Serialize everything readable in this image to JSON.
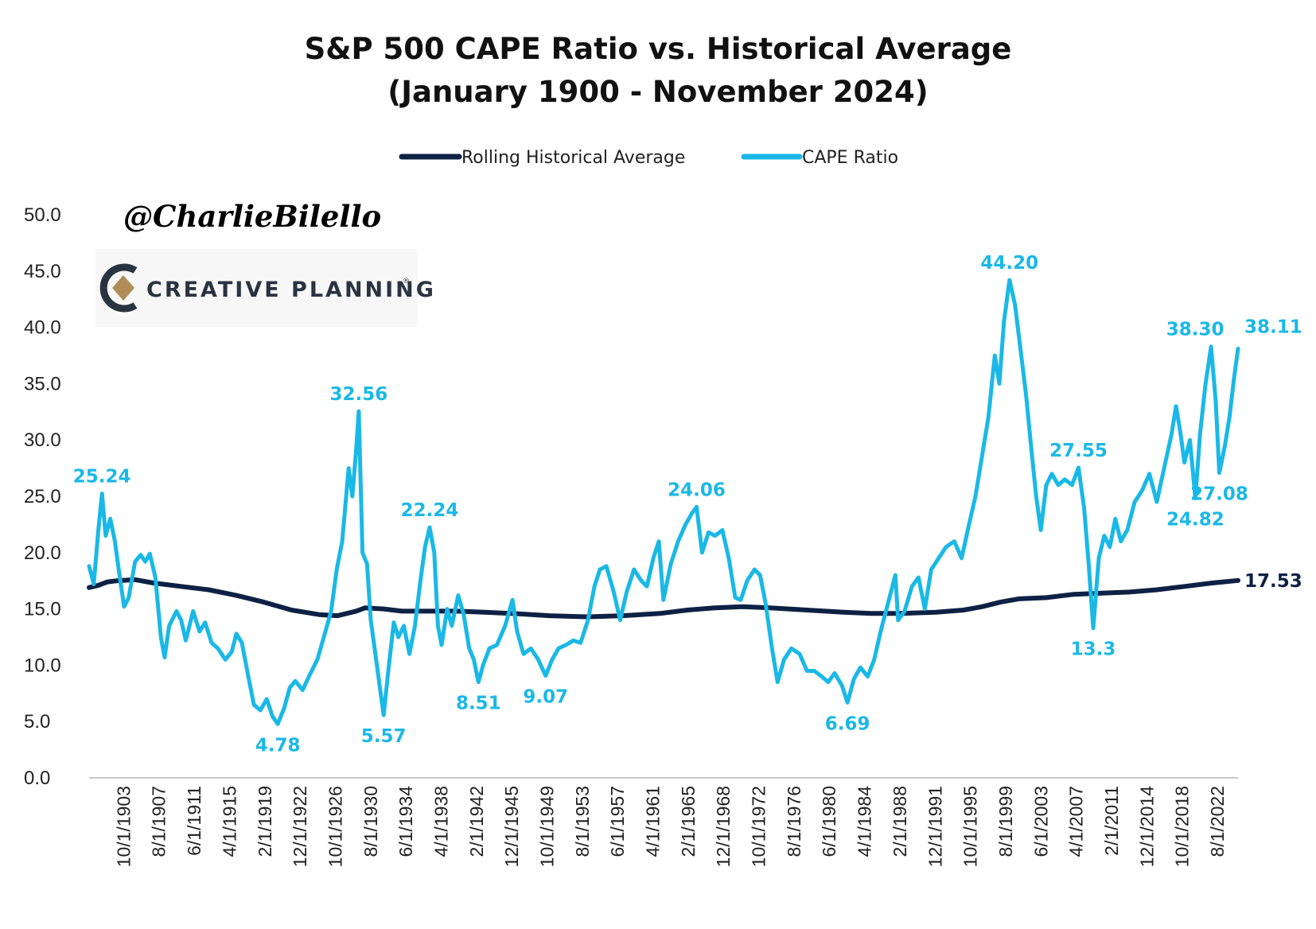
{
  "colors": {
    "cape": "#1ab8e6",
    "average": "#0d2144",
    "axis": "#c8c8c8",
    "logo_dark": "#2a3340",
    "logo_gold": "#b08d57"
  },
  "watermark": {
    "handle": "@CharlieBilello",
    "logo_text": "CREATIVE PLANNING",
    "logo_icon": "creative-planning-logo-icon"
  },
  "chart_data": {
    "type": "line",
    "title": "S&P 500 CAPE Ratio vs. Historical Average",
    "subtitle": "(January 1900 - November 2024)",
    "legend": {
      "placement": "top-center"
    },
    "xlabel": "",
    "ylabel": "",
    "grid": false,
    "x_range": [
      1900,
      2024.83
    ],
    "ylim": [
      0,
      50
    ],
    "y_ticks": [
      "0.0",
      "5.0",
      "10.0",
      "15.0",
      "20.0",
      "25.0",
      "30.0",
      "35.0",
      "40.0",
      "45.0",
      "50.0"
    ],
    "x_ticks": [
      "10/1/1903",
      "8/1/1907",
      "6/1/1911",
      "4/1/1915",
      "2/1/1919",
      "12/1/1922",
      "10/1/1926",
      "8/1/1930",
      "6/1/1934",
      "4/1/1938",
      "2/1/1942",
      "12/1/1945",
      "10/1/1949",
      "8/1/1953",
      "6/1/1957",
      "4/1/1961",
      "2/1/1965",
      "12/1/1968",
      "10/1/1972",
      "8/1/1976",
      "6/1/1980",
      "4/1/1984",
      "2/1/1988",
      "12/1/1991",
      "10/1/1995",
      "8/1/1999",
      "6/1/2003",
      "4/1/2007",
      "2/1/2011",
      "12/1/2014",
      "10/1/2018",
      "8/1/2022"
    ],
    "series": [
      {
        "name": "Rolling Historical Average",
        "points": [
          [
            1900,
            16.9
          ],
          [
            1901,
            17.1
          ],
          [
            1902,
            17.4
          ],
          [
            1903,
            17.5
          ],
          [
            1905,
            17.6
          ],
          [
            1907,
            17.3
          ],
          [
            1910,
            17.0
          ],
          [
            1913,
            16.7
          ],
          [
            1916,
            16.2
          ],
          [
            1919,
            15.6
          ],
          [
            1922,
            14.9
          ],
          [
            1925,
            14.5
          ],
          [
            1927,
            14.4
          ],
          [
            1929,
            14.8
          ],
          [
            1930,
            15.1
          ],
          [
            1932,
            15.0
          ],
          [
            1934,
            14.8
          ],
          [
            1937,
            14.8
          ],
          [
            1940,
            14.8
          ],
          [
            1943,
            14.7
          ],
          [
            1946,
            14.6
          ],
          [
            1950,
            14.4
          ],
          [
            1954,
            14.3
          ],
          [
            1958,
            14.4
          ],
          [
            1962,
            14.6
          ],
          [
            1965,
            14.9
          ],
          [
            1968,
            15.1
          ],
          [
            1971,
            15.2
          ],
          [
            1974,
            15.1
          ],
          [
            1978,
            14.9
          ],
          [
            1982,
            14.7
          ],
          [
            1985,
            14.6
          ],
          [
            1988,
            14.6
          ],
          [
            1992,
            14.7
          ],
          [
            1995,
            14.9
          ],
          [
            1997,
            15.2
          ],
          [
            1999,
            15.6
          ],
          [
            2001,
            15.9
          ],
          [
            2004,
            16.0
          ],
          [
            2007,
            16.3
          ],
          [
            2010,
            16.4
          ],
          [
            2013,
            16.5
          ],
          [
            2016,
            16.7
          ],
          [
            2019,
            17.0
          ],
          [
            2022,
            17.3
          ],
          [
            2024.83,
            17.53
          ]
        ]
      },
      {
        "name": "CAPE Ratio",
        "points": [
          [
            1900,
            18.8
          ],
          [
            1900.5,
            17.2
          ],
          [
            1901,
            22.0
          ],
          [
            1901.4,
            25.24
          ],
          [
            1901.8,
            21.5
          ],
          [
            1902.3,
            23.0
          ],
          [
            1902.8,
            21.0
          ],
          [
            1903.3,
            18.0
          ],
          [
            1903.8,
            15.2
          ],
          [
            1904.3,
            16.0
          ],
          [
            1905,
            19.2
          ],
          [
            1905.6,
            19.8
          ],
          [
            1906.1,
            19.2
          ],
          [
            1906.6,
            19.9
          ],
          [
            1907.2,
            17.8
          ],
          [
            1907.8,
            12.5
          ],
          [
            1908.2,
            10.7
          ],
          [
            1908.7,
            13.5
          ],
          [
            1909.5,
            14.8
          ],
          [
            1910,
            14.0
          ],
          [
            1910.5,
            12.2
          ],
          [
            1911.3,
            14.8
          ],
          [
            1912,
            13.0
          ],
          [
            1912.6,
            13.8
          ],
          [
            1913.3,
            12.0
          ],
          [
            1914,
            11.5
          ],
          [
            1914.8,
            10.5
          ],
          [
            1915.5,
            11.2
          ],
          [
            1916,
            12.8
          ],
          [
            1916.6,
            12.0
          ],
          [
            1917.3,
            9.0
          ],
          [
            1917.9,
            6.5
          ],
          [
            1918.6,
            6.0
          ],
          [
            1919.3,
            7.0
          ],
          [
            1919.9,
            5.5
          ],
          [
            1920.5,
            4.78
          ],
          [
            1921.2,
            6.2
          ],
          [
            1921.8,
            8.0
          ],
          [
            1922.4,
            8.6
          ],
          [
            1923.2,
            7.8
          ],
          [
            1924,
            9.2
          ],
          [
            1924.8,
            10.5
          ],
          [
            1925.5,
            12.5
          ],
          [
            1926.3,
            14.8
          ],
          [
            1926.9,
            18.5
          ],
          [
            1927.5,
            21.0
          ],
          [
            1928.2,
            27.5
          ],
          [
            1928.6,
            25.0
          ],
          [
            1929.0,
            29.0
          ],
          [
            1929.3,
            32.56
          ],
          [
            1929.7,
            20.0
          ],
          [
            1930.2,
            19.0
          ],
          [
            1930.6,
            14.0
          ],
          [
            1931.1,
            11.0
          ],
          [
            1931.6,
            8.0
          ],
          [
            1932.0,
            5.57
          ],
          [
            1932.5,
            9.5
          ],
          [
            1933.1,
            13.8
          ],
          [
            1933.6,
            12.5
          ],
          [
            1934.2,
            13.5
          ],
          [
            1934.8,
            11.0
          ],
          [
            1935.4,
            13.5
          ],
          [
            1936.0,
            17.5
          ],
          [
            1936.5,
            20.5
          ],
          [
            1937.0,
            22.24
          ],
          [
            1937.5,
            20.0
          ],
          [
            1937.9,
            13.5
          ],
          [
            1938.3,
            11.8
          ],
          [
            1938.9,
            15.0
          ],
          [
            1939.4,
            13.5
          ],
          [
            1940.1,
            16.2
          ],
          [
            1940.7,
            14.5
          ],
          [
            1941.3,
            11.5
          ],
          [
            1941.8,
            10.5
          ],
          [
            1942.3,
            8.51
          ],
          [
            1942.8,
            10.0
          ],
          [
            1943.5,
            11.5
          ],
          [
            1944.3,
            11.8
          ],
          [
            1945.2,
            13.5
          ],
          [
            1946.0,
            15.8
          ],
          [
            1946.5,
            13.0
          ],
          [
            1947.2,
            11.0
          ],
          [
            1948.0,
            11.5
          ],
          [
            1948.8,
            10.5
          ],
          [
            1949.6,
            9.07
          ],
          [
            1950.3,
            10.5
          ],
          [
            1951.0,
            11.5
          ],
          [
            1951.8,
            11.8
          ],
          [
            1952.6,
            12.2
          ],
          [
            1953.4,
            12.0
          ],
          [
            1954.2,
            14.0
          ],
          [
            1954.9,
            17.0
          ],
          [
            1955.5,
            18.5
          ],
          [
            1956.2,
            18.8
          ],
          [
            1957.0,
            16.5
          ],
          [
            1957.7,
            14.0
          ],
          [
            1958.4,
            16.5
          ],
          [
            1959.2,
            18.5
          ],
          [
            1960.0,
            17.5
          ],
          [
            1960.6,
            17.0
          ],
          [
            1961.3,
            19.5
          ],
          [
            1961.9,
            21.0
          ],
          [
            1962.4,
            15.8
          ],
          [
            1963.2,
            19.0
          ],
          [
            1964.0,
            21.0
          ],
          [
            1964.8,
            22.5
          ],
          [
            1965.5,
            23.5
          ],
          [
            1966.0,
            24.06
          ],
          [
            1966.6,
            20.0
          ],
          [
            1967.3,
            21.8
          ],
          [
            1968.0,
            21.5
          ],
          [
            1968.8,
            22.0
          ],
          [
            1969.5,
            19.5
          ],
          [
            1970.2,
            16.0
          ],
          [
            1970.8,
            15.8
          ],
          [
            1971.5,
            17.5
          ],
          [
            1972.3,
            18.5
          ],
          [
            1972.9,
            18.0
          ],
          [
            1973.5,
            15.5
          ],
          [
            1974.2,
            11.5
          ],
          [
            1974.8,
            8.5
          ],
          [
            1975.5,
            10.5
          ],
          [
            1976.3,
            11.5
          ],
          [
            1977.2,
            11.0
          ],
          [
            1978.0,
            9.5
          ],
          [
            1978.8,
            9.5
          ],
          [
            1979.6,
            9.0
          ],
          [
            1980.3,
            8.5
          ],
          [
            1981.0,
            9.3
          ],
          [
            1981.8,
            8.2
          ],
          [
            1982.4,
            6.69
          ],
          [
            1983.1,
            8.8
          ],
          [
            1983.8,
            9.8
          ],
          [
            1984.6,
            9.0
          ],
          [
            1985.3,
            10.5
          ],
          [
            1986.0,
            13.0
          ],
          [
            1986.8,
            15.5
          ],
          [
            1987.6,
            18.0
          ],
          [
            1987.9,
            14.0
          ],
          [
            1988.6,
            14.8
          ],
          [
            1989.4,
            17.0
          ],
          [
            1990.1,
            17.8
          ],
          [
            1990.8,
            15.0
          ],
          [
            1991.5,
            18.5
          ],
          [
            1992.3,
            19.5
          ],
          [
            1993.1,
            20.5
          ],
          [
            1994.0,
            21.0
          ],
          [
            1994.8,
            19.5
          ],
          [
            1995.6,
            22.5
          ],
          [
            1996.3,
            25.0
          ],
          [
            1997.0,
            28.5
          ],
          [
            1997.7,
            32.0
          ],
          [
            1998.4,
            37.5
          ],
          [
            1998.9,
            35.0
          ],
          [
            1999.4,
            40.5
          ],
          [
            2000.0,
            44.2
          ],
          [
            2000.6,
            42.0
          ],
          [
            2001.2,
            38.0
          ],
          [
            2001.8,
            34.0
          ],
          [
            2002.4,
            29.0
          ],
          [
            2002.9,
            25.0
          ],
          [
            2003.4,
            22.0
          ],
          [
            2004.0,
            26.0
          ],
          [
            2004.6,
            27.0
          ],
          [
            2005.3,
            26.0
          ],
          [
            2006.0,
            26.5
          ],
          [
            2006.8,
            26.0
          ],
          [
            2007.5,
            27.55
          ],
          [
            2008.1,
            24.0
          ],
          [
            2008.6,
            19.0
          ],
          [
            2009.1,
            13.3
          ],
          [
            2009.7,
            19.5
          ],
          [
            2010.3,
            21.5
          ],
          [
            2010.9,
            20.5
          ],
          [
            2011.5,
            23.0
          ],
          [
            2012.1,
            21.0
          ],
          [
            2012.8,
            22.0
          ],
          [
            2013.6,
            24.5
          ],
          [
            2014.4,
            25.5
          ],
          [
            2015.2,
            27.0
          ],
          [
            2016.0,
            24.5
          ],
          [
            2016.8,
            27.5
          ],
          [
            2017.6,
            30.5
          ],
          [
            2018.1,
            33.0
          ],
          [
            2018.6,
            30.5
          ],
          [
            2019.0,
            28.0
          ],
          [
            2019.6,
            30.0
          ],
          [
            2020.2,
            24.82
          ],
          [
            2020.7,
            30.5
          ],
          [
            2021.3,
            35.0
          ],
          [
            2021.9,
            38.3
          ],
          [
            2022.4,
            33.5
          ],
          [
            2022.8,
            27.08
          ],
          [
            2023.4,
            29.5
          ],
          [
            2023.9,
            32.0
          ],
          [
            2024.4,
            35.5
          ],
          [
            2024.83,
            38.11
          ]
        ]
      }
    ],
    "annotations": [
      {
        "text": "25.24",
        "x": 1901.4,
        "y": 25.24,
        "series": "CAPE Ratio",
        "pos": "above"
      },
      {
        "text": "4.78",
        "x": 1920.5,
        "y": 4.78,
        "series": "CAPE Ratio",
        "pos": "below"
      },
      {
        "text": "32.56",
        "x": 1929.3,
        "y": 32.56,
        "series": "CAPE Ratio",
        "pos": "above"
      },
      {
        "text": "5.57",
        "x": 1932.0,
        "y": 5.57,
        "series": "CAPE Ratio",
        "pos": "below"
      },
      {
        "text": "22.24",
        "x": 1937.0,
        "y": 22.24,
        "series": "CAPE Ratio",
        "pos": "above"
      },
      {
        "text": "8.51",
        "x": 1942.3,
        "y": 8.51,
        "series": "CAPE Ratio",
        "pos": "below"
      },
      {
        "text": "9.07",
        "x": 1949.6,
        "y": 9.07,
        "series": "CAPE Ratio",
        "pos": "below"
      },
      {
        "text": "24.06",
        "x": 1966.0,
        "y": 24.06,
        "series": "CAPE Ratio",
        "pos": "above"
      },
      {
        "text": "6.69",
        "x": 1982.4,
        "y": 6.69,
        "series": "CAPE Ratio",
        "pos": "below"
      },
      {
        "text": "44.20",
        "x": 2000.0,
        "y": 44.2,
        "series": "CAPE Ratio",
        "pos": "above"
      },
      {
        "text": "27.55",
        "x": 2007.5,
        "y": 27.55,
        "series": "CAPE Ratio",
        "pos": "above"
      },
      {
        "text": "13.3",
        "x": 2009.1,
        "y": 13.3,
        "series": "CAPE Ratio",
        "pos": "below"
      },
      {
        "text": "24.82",
        "x": 2020.2,
        "y": 24.82,
        "series": "CAPE Ratio",
        "pos": "below"
      },
      {
        "text": "38.30",
        "x": 2021.9,
        "y": 38.3,
        "series": "CAPE Ratio",
        "pos": "above"
      },
      {
        "text": "27.08",
        "x": 2022.8,
        "y": 27.08,
        "series": "CAPE Ratio",
        "pos": "below"
      },
      {
        "text": "38.11",
        "x": 2024.83,
        "y": 38.11,
        "series": "CAPE Ratio",
        "pos": "right"
      },
      {
        "text": "17.53",
        "x": 2024.83,
        "y": 17.53,
        "series": "Rolling Historical Average",
        "pos": "right"
      }
    ]
  }
}
